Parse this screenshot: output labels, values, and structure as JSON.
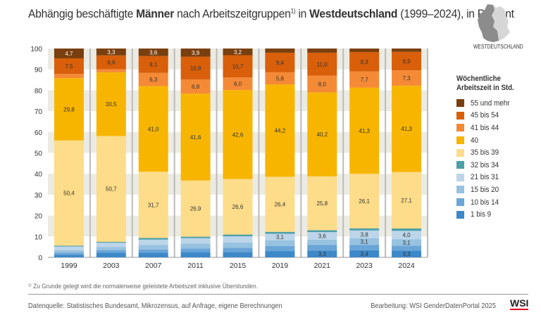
{
  "title": {
    "part1": "Abhängig beschäftigte ",
    "bold1": "Männer",
    "part2": " nach Arbeitszeitgruppen",
    "sup": "1)",
    "part3": " in ",
    "bold2": "Westdeutschland",
    "part4": " (1999–2024), in Prozent"
  },
  "map_label": "WESTDEUTSCHLAND",
  "legend_title_line1": "Wöchentliche",
  "legend_title_line2": "Arbeitszeit in Std.",
  "footnote": "¹⁾ Zu Grunde gelegt wird die normalerweise geleistete Arbeitszeit inklusive Überstunden.",
  "source": "Datenquelle: Statistisches Bundesamt, Mikrozensus, auf Anfrage, eigene Berechnungen",
  "editor": "Bearbeitung: WSI GenderDatenPortal 2025",
  "logo": "WSI",
  "chart_data": {
    "type": "bar",
    "stacked": true,
    "ylim": [
      0,
      100
    ],
    "yticks": [
      0,
      10,
      20,
      30,
      40,
      50,
      60,
      70,
      80,
      90,
      100
    ],
    "grid": "alternating bands",
    "legend_placement": "right",
    "categories": [
      "1999",
      "2003",
      "2007",
      "2011",
      "2015",
      "2019",
      "2021",
      "2023",
      "2024"
    ],
    "series": [
      {
        "name": "1 bis 9",
        "color": "#3d88c8",
        "values": [
          1.2,
          2.3,
          2.2,
          2.5,
          2.6,
          3.0,
          3.3,
          3.4,
          3.3
        ],
        "labels": [
          null,
          null,
          null,
          null,
          null,
          null,
          "3,3",
          "3,4",
          "3,3"
        ]
      },
      {
        "name": "10 bis 14",
        "color": "#6aa5d8",
        "values": [
          1.0,
          1.2,
          1.6,
          1.8,
          2.0,
          2.4,
          2.7,
          2.6,
          2.3
        ],
        "labels": [
          null,
          null,
          null,
          null,
          null,
          null,
          null,
          null,
          null
        ]
      },
      {
        "name": "15 bis 20",
        "color": "#97c2e0",
        "values": [
          1.2,
          1.5,
          2.2,
          2.3,
          2.5,
          2.8,
          2.5,
          3.1,
          3.1
        ],
        "labels": [
          null,
          null,
          null,
          null,
          null,
          null,
          null,
          "3,1",
          "3,1"
        ]
      },
      {
        "name": "21 bis 31",
        "color": "#bcd5e9",
        "values": [
          1.8,
          2.0,
          2.5,
          2.6,
          3.0,
          3.1,
          3.6,
          3.8,
          4.0
        ],
        "labels": [
          null,
          null,
          null,
          null,
          null,
          "3,1",
          "3,6",
          "3,8",
          "4,0"
        ]
      },
      {
        "name": "32 bis 34",
        "color": "#4d9fa8",
        "values": [
          0.4,
          0.4,
          0.8,
          0.7,
          0.8,
          0.9,
          0.9,
          1.0,
          1.1
        ],
        "labels": [
          null,
          null,
          null,
          null,
          null,
          null,
          null,
          null,
          null
        ]
      },
      {
        "name": "35 bis 39",
        "color": "#fddc8a",
        "values": [
          50.4,
          50.7,
          31.7,
          26.9,
          26.6,
          26.4,
          25.8,
          26.1,
          27.1
        ],
        "labels": [
          "50,4",
          "50,7",
          "31,7",
          "26,9",
          "26,6",
          "26,4",
          "25,8",
          "26,1",
          "27,1"
        ]
      },
      {
        "name": "40",
        "color": "#f7b500",
        "values": [
          29.8,
          30.5,
          41.0,
          41.6,
          42.6,
          44.2,
          40.2,
          41.3,
          41.3
        ],
        "labels": [
          "29,8",
          "30,5",
          "41,0",
          "41,6",
          "42,6",
          "44,2",
          "40,2",
          "41,3",
          "41,3"
        ]
      },
      {
        "name": "41 bis 44",
        "color": "#f58a36",
        "values": [
          2.0,
          1.5,
          6.3,
          6.8,
          6.0,
          5.8,
          8.0,
          7.7,
          7.3
        ],
        "labels": [
          null,
          null,
          "6,3",
          "6,8",
          "6,0",
          "5,8",
          "8,0",
          "7,7",
          "7,3"
        ]
      },
      {
        "name": "45 bis 54",
        "color": "#d95f0a",
        "values": [
          7.5,
          6.6,
          8.1,
          10.9,
          10.7,
          9.4,
          11.0,
          9.3,
          8.9
        ],
        "labels": [
          "7,5",
          "6,6",
          "8,1",
          "10,9",
          "10,7",
          "9,4",
          "11,0",
          "9,3",
          "8,9"
        ]
      },
      {
        "name": "55 und mehr",
        "color": "#7a3f0f",
        "values": [
          4.7,
          3.3,
          3.6,
          3.9,
          3.2,
          2.0,
          2.0,
          1.7,
          1.6
        ],
        "labels": [
          "4,7",
          "3,3",
          "3,6",
          "3,9",
          "3,2",
          null,
          null,
          null,
          null
        ]
      }
    ]
  }
}
